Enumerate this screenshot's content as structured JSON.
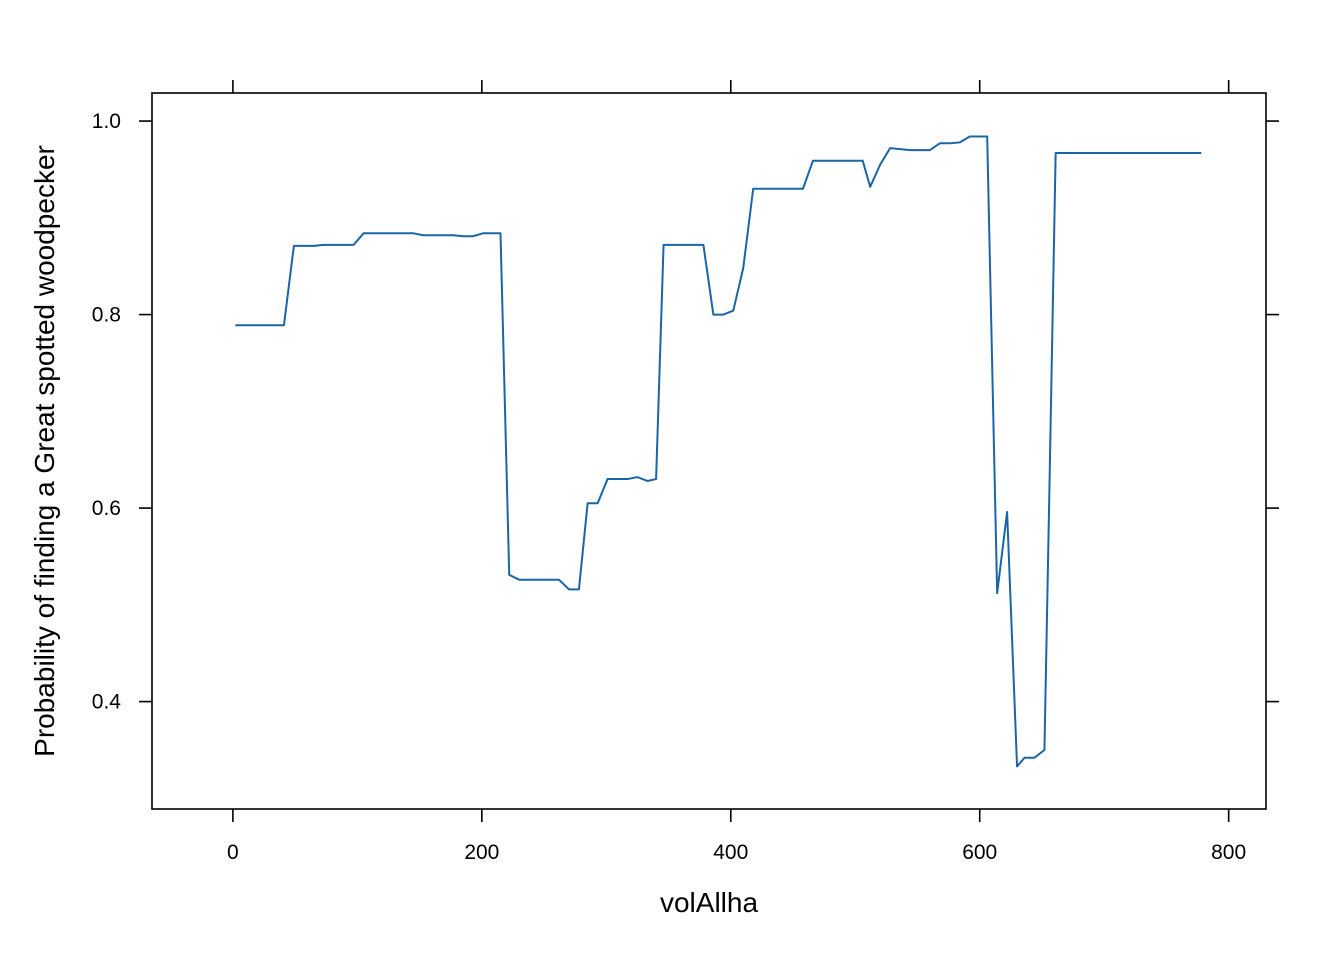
{
  "chart_data": {
    "type": "line",
    "title": "",
    "xlabel": "volAllha",
    "ylabel": "Probability of finding a Great spotted woodpecker",
    "xlim": [
      -65,
      830
    ],
    "ylim": [
      0.289,
      1.029
    ],
    "x_ticks": [
      0,
      200,
      400,
      600,
      800
    ],
    "x_tick_labels": [
      "0",
      "200",
      "400",
      "600",
      "800"
    ],
    "y_ticks": [
      0.4,
      0.6,
      0.8,
      1.0
    ],
    "y_tick_labels": [
      "0.4",
      "0.6",
      "0.8",
      "1.0"
    ],
    "grid": false,
    "line_color": "#1a65a8",
    "series": [
      {
        "x": [
          2,
          10,
          20,
          30,
          41,
          49,
          57,
          65,
          73,
          81,
          89,
          97,
          105,
          113,
          121,
          129,
          137,
          145,
          153,
          161,
          169,
          177,
          185,
          193,
          201,
          209,
          215,
          222,
          230,
          238,
          246,
          254,
          262,
          270,
          278,
          285,
          293,
          301,
          309,
          317,
          325,
          333,
          340,
          346,
          354,
          362,
          370,
          378,
          386,
          394,
          402,
          410,
          418,
          426,
          434,
          442,
          450,
          458,
          466,
          474,
          482,
          490,
          498,
          506,
          512,
          520,
          528,
          536,
          544,
          552,
          560,
          568,
          576,
          584,
          592,
          600,
          606,
          614,
          622,
          630,
          636,
          644,
          652,
          656,
          661,
          670,
          700,
          740,
          778
        ],
        "y": [
          0.789,
          0.789,
          0.789,
          0.789,
          0.789,
          0.871,
          0.871,
          0.871,
          0.872,
          0.872,
          0.872,
          0.872,
          0.884,
          0.884,
          0.884,
          0.884,
          0.884,
          0.884,
          0.882,
          0.882,
          0.882,
          0.882,
          0.881,
          0.881,
          0.884,
          0.884,
          0.884,
          0.531,
          0.526,
          0.526,
          0.526,
          0.526,
          0.526,
          0.516,
          0.516,
          0.605,
          0.605,
          0.63,
          0.63,
          0.63,
          0.632,
          0.628,
          0.63,
          0.872,
          0.872,
          0.872,
          0.872,
          0.872,
          0.8,
          0.8,
          0.804,
          0.848,
          0.93,
          0.93,
          0.93,
          0.93,
          0.93,
          0.93,
          0.959,
          0.959,
          0.959,
          0.959,
          0.959,
          0.959,
          0.932,
          0.955,
          0.972,
          0.971,
          0.97,
          0.97,
          0.97,
          0.977,
          0.977,
          0.978,
          0.984,
          0.984,
          0.984,
          0.512,
          0.596,
          0.333,
          0.342,
          0.342,
          0.35,
          0.62,
          0.967,
          0.967,
          0.967,
          0.967,
          0.967
        ]
      }
    ]
  }
}
